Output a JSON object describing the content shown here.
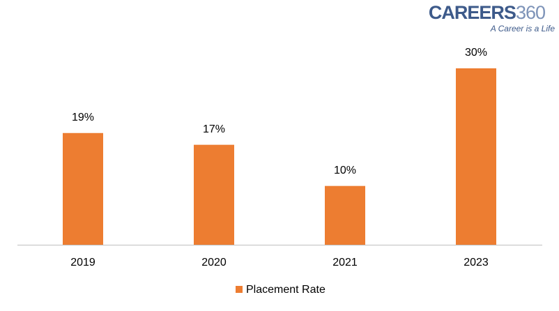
{
  "logo": {
    "brand": "CAREERS",
    "number": "360",
    "tagline": "A Career is a Life"
  },
  "chart_data": {
    "type": "bar",
    "categories": [
      "2019",
      "2020",
      "2021",
      "2023"
    ],
    "series": [
      {
        "name": "Placement Rate",
        "color": "#ed7d31",
        "values": [
          19,
          17,
          10,
          30
        ],
        "value_labels": [
          "19%",
          "17%",
          "10%",
          "30%"
        ]
      }
    ],
    "ylim": [
      0,
      30
    ],
    "legend": "bottom"
  }
}
